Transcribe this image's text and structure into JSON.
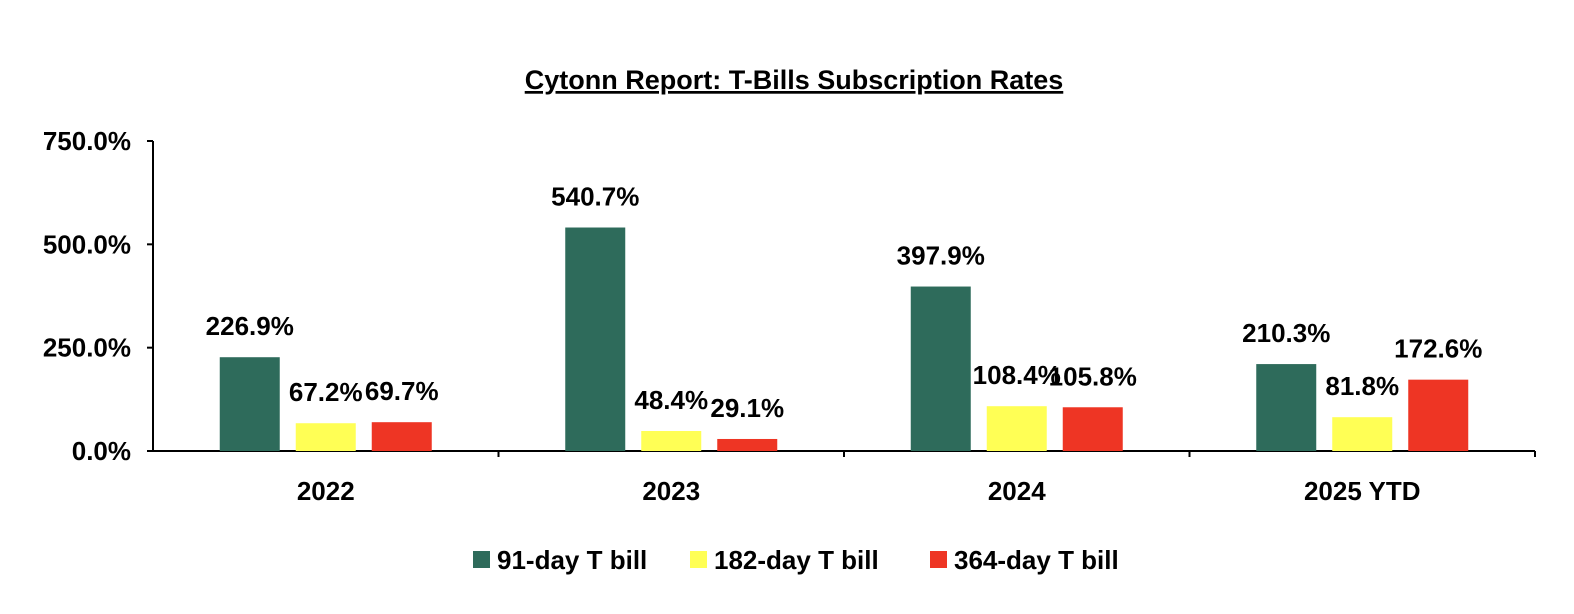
{
  "chart_data": {
    "type": "bar",
    "title": "Cytonn Report: T-Bills Subscription Rates",
    "xlabel": "",
    "ylabel": "",
    "categories": [
      "2022",
      "2023",
      "2024",
      "2025 YTD"
    ],
    "series": [
      {
        "name": "91-day T bill",
        "color": "#2E6B5B",
        "values": [
          226.9,
          540.7,
          397.9,
          210.3
        ],
        "labels": [
          "226.9%",
          "540.7%",
          "397.9%",
          "210.3%"
        ]
      },
      {
        "name": "182-day T bill",
        "color": "#FFFF55",
        "values": [
          67.2,
          48.4,
          108.4,
          81.8
        ],
        "labels": [
          "67.2%",
          "48.4%",
          "108.4%",
          "81.8%"
        ]
      },
      {
        "name": "364-day T bill",
        "color": "#EE3524",
        "values": [
          69.7,
          29.1,
          105.8,
          172.6
        ],
        "labels": [
          "69.7%",
          "29.1%",
          "105.8%",
          "172.6%"
        ]
      }
    ],
    "ylim": [
      0,
      750
    ],
    "yticks": [
      0,
      250,
      500,
      750
    ],
    "ytick_labels": [
      "0.0%",
      "250.0%",
      "500.0%",
      "750.0%"
    ],
    "grid": false,
    "legend_position": "bottom"
  }
}
